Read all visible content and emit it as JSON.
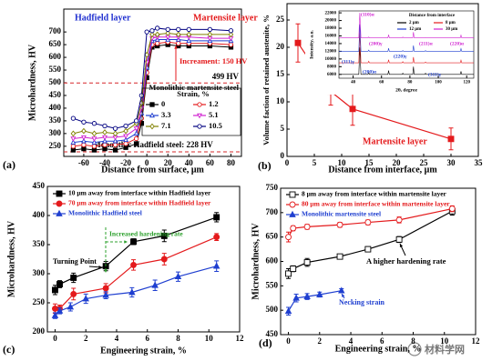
{
  "chart_data": [
    {
      "type": "line",
      "panel": "(a)",
      "xlabel": "Distance from surface, μm",
      "ylabel": "Microhardness, HV",
      "xlim": [
        -79,
        90
      ],
      "ylim": [
        210,
        790
      ],
      "xticks": [
        -60,
        -40,
        -20,
        0,
        20,
        40,
        60,
        80
      ],
      "yticks": [
        250,
        300,
        350,
        400,
        450,
        500,
        550,
        600,
        650,
        700
      ],
      "x": [
        -70,
        -60,
        -50,
        -40,
        -30,
        -20,
        -10,
        -5,
        0,
        5,
        10,
        20,
        30,
        40,
        60,
        80
      ],
      "legend_title": "Strain, %",
      "series": [
        {
          "name": "0",
          "color": "#000000",
          "marker": "square",
          "filled": true,
          "values": [
            235,
            240,
            235,
            240,
            235,
            245,
            260,
            340,
            520,
            640,
            645,
            650,
            645,
            645,
            645,
            640
          ]
        },
        {
          "name": "1.2",
          "color": "#e41a1c",
          "marker": "circle",
          "filled": false,
          "values": [
            250,
            255,
            250,
            255,
            255,
            260,
            280,
            360,
            540,
            650,
            655,
            660,
            655,
            655,
            655,
            650
          ]
        },
        {
          "name": "3.3",
          "color": "#1f3fd0",
          "marker": "triangle",
          "filled": false,
          "values": [
            265,
            270,
            265,
            270,
            270,
            275,
            300,
            380,
            560,
            665,
            670,
            670,
            670,
            665,
            665,
            665
          ]
        },
        {
          "name": "5.1",
          "color": "#d020d0",
          "marker": "tri-down",
          "filled": false,
          "values": [
            280,
            285,
            280,
            285,
            285,
            290,
            320,
            400,
            580,
            675,
            680,
            680,
            680,
            680,
            675,
            675
          ]
        },
        {
          "name": "7.1",
          "color": "#808000",
          "marker": "diamond",
          "filled": false,
          "values": [
            300,
            310,
            300,
            305,
            300,
            310,
            340,
            420,
            610,
            690,
            690,
            695,
            690,
            690,
            690,
            690
          ]
        },
        {
          "name": "10.5",
          "color": "#000080",
          "marker": "circle",
          "filled": false,
          "values": [
            360,
            345,
            340,
            330,
            320,
            330,
            350,
            450,
            700,
            705,
            715,
            710,
            710,
            710,
            710,
            705
          ]
        }
      ],
      "hlines": [
        {
          "value": 499,
          "label": "499 HV",
          "color": "#d62728"
        },
        {
          "value": 228,
          "label": "Monolithic Hadfield steel: 228 HV",
          "color": "#d62728"
        }
      ],
      "annotations": [
        {
          "text": "Hadfield layer",
          "color": "#1f2fd0"
        },
        {
          "text": "Martensite layer",
          "color": "#e41a1c"
        },
        {
          "text": "Increament: 150 HV",
          "color": "#e41a1c"
        },
        {
          "text": "Monolithic martensite steel",
          "color": "#000000"
        }
      ]
    },
    {
      "type": "line",
      "panel": "(b)",
      "xlabel": "Distance from interface, μm",
      "ylabel": "Volume faction of retained austenite, %",
      "xlim": [
        0,
        35
      ],
      "ylim": [
        0,
        28
      ],
      "xticks": [
        0,
        5,
        10,
        15,
        20,
        25,
        30,
        35
      ],
      "yticks": [
        0,
        5,
        10,
        15,
        20,
        25
      ],
      "x": [
        2,
        8,
        12,
        30
      ],
      "values": [
        20.8,
        11.9,
        8.7,
        3.2
      ],
      "errors": [
        3.5,
        2.5,
        3,
        2
      ],
      "color": "#e41a1c",
      "marker": "square",
      "filled": true,
      "annotations": [
        {
          "text": "Martensite layer",
          "color": "#e41a1c"
        }
      ],
      "inset": {
        "type": "line",
        "xlabel": "2θ, degree",
        "ylabel": "Intensity, a.u.",
        "xlim": [
          30,
          125
        ],
        "ylim": [
          5000,
          22500
        ],
        "xticks": [
          40,
          60,
          80,
          100,
          120
        ],
        "yticks": [
          6000,
          8000,
          10000,
          12000,
          14000,
          16000,
          18000,
          20000,
          22000
        ],
        "x": [
          30,
          44,
          44.7,
          45.5,
          50.5,
          51,
          51.5,
          64.5,
          65,
          65.5,
          74.5,
          75,
          75.5,
          82,
          82.5,
          83,
          90.5,
          91,
          91.5,
          115.5,
          116,
          116.5,
          125
        ],
        "legend_title": "Distance from interface",
        "series": [
          {
            "name": "2 μm",
            "color": "#000000",
            "values": [
              6000,
              6000,
              13000,
              6000,
              6000,
              6500,
              6000,
              6000,
              7000,
              6000,
              6000,
              6300,
              6000,
              6000,
              8000,
              6000,
              6000,
              6300,
              6000,
              6000,
              6800,
              6000,
              6000
            ]
          },
          {
            "name": "8 μm",
            "color": "#e41a1c",
            "values": [
              9000,
              9000,
              17000,
              9000,
              9000,
              9400,
              9000,
              9000,
              9800,
              9000,
              9000,
              9300,
              9000,
              9000,
              10500,
              9000,
              9000,
              9200,
              9000,
              9000,
              9700,
              9000,
              9000
            ]
          },
          {
            "name": "12 μm",
            "color": "#1f3fd0",
            "values": [
              12000,
              12000,
              19000,
              12000,
              12000,
              12300,
              12000,
              12000,
              12800,
              12000,
              12000,
              12200,
              12000,
              12000,
              13500,
              12000,
              12000,
              12200,
              12000,
              12000,
              12700,
              12000,
              12000
            ]
          },
          {
            "name": "30 μm",
            "color": "#d020d0",
            "values": [
              15500,
              15500,
              22000,
              15500,
              15500,
              15700,
              15500,
              15500,
              16300,
              15500,
              15500,
              15700,
              15500,
              15500,
              17000,
              15500,
              15500,
              15600,
              15500,
              15500,
              16200,
              15500,
              15500
            ]
          }
        ],
        "annotations": [
          {
            "text": "(110)α",
            "color": "#d020d0"
          },
          {
            "text": "(111)γ",
            "color": "#1f3fd0"
          },
          {
            "text": "(200)γ",
            "color": "#d020d0"
          },
          {
            "text": "(200)α",
            "color": "#1f3fd0"
          },
          {
            "text": "(220)γ",
            "color": "#1f3fd0"
          },
          {
            "text": "(211)α",
            "color": "#d020d0"
          },
          {
            "text": "(311)γ",
            "color": "#1f3fd0"
          },
          {
            "text": "(220)α",
            "color": "#d020d0"
          }
        ]
      }
    },
    {
      "type": "line",
      "panel": "(c)",
      "xlabel": "Engineering strain, %",
      "ylabel": "Microhardness, HV",
      "xlim": [
        -0.5,
        12
      ],
      "ylim": [
        200,
        450
      ],
      "xticks": [
        0,
        2,
        4,
        6,
        8,
        10,
        12
      ],
      "yticks": [
        200,
        250,
        300,
        350,
        400,
        450
      ],
      "series": [
        {
          "name": "10 μm away from interface within Hadfield layer",
          "color": "#000000",
          "marker": "square",
          "filled": true,
          "x": [
            0,
            0.3,
            1.2,
            3.3,
            5.1,
            7.1,
            10.5
          ],
          "values": [
            272,
            282,
            293,
            313,
            355,
            365,
            397
          ],
          "errors": [
            8,
            6,
            8,
            8,
            5,
            10,
            8
          ]
        },
        {
          "name": "70 μm away from interface within Hadfield layer",
          "color": "#e41a1c",
          "marker": "circle",
          "filled": true,
          "x": [
            0,
            0.3,
            1.2,
            3.3,
            5.1,
            7.1,
            10.5
          ],
          "values": [
            240,
            240,
            265,
            275,
            315,
            325,
            363
          ],
          "errors": [
            8,
            6,
            10,
            8,
            9,
            10,
            6
          ]
        },
        {
          "name": "Monolithic Hadfield steel",
          "color": "#1f3fd0",
          "marker": "triangle",
          "filled": true,
          "x": [
            0,
            0.3,
            1,
            2,
            3.3,
            5,
            6.5,
            8,
            10.5
          ],
          "values": [
            228,
            236,
            243,
            257,
            263,
            268,
            280,
            295,
            313
          ],
          "errors": [
            5,
            5,
            7,
            8,
            6,
            8,
            9,
            8,
            9
          ]
        }
      ],
      "annotations": [
        {
          "text": "Increased hardening rate",
          "color": "#2ca02c"
        },
        {
          "text": "Turning Point",
          "color": "#000000"
        }
      ]
    },
    {
      "type": "line",
      "panel": "(d)",
      "xlabel": "Engineering strain, %",
      "ylabel": "Microhardness, HV",
      "xlim": [
        -0.5,
        12
      ],
      "ylim": [
        450,
        750
      ],
      "xticks": [
        0,
        2,
        4,
        6,
        8,
        10,
        12
      ],
      "yticks": [
        450,
        500,
        550,
        600,
        650,
        700,
        750
      ],
      "series": [
        {
          "name": "8 μm away from interface within martensite layer",
          "color": "#000000",
          "marker": "square",
          "filled": false,
          "x": [
            0,
            0.3,
            1.2,
            3.3,
            5.1,
            7.1,
            10.5
          ],
          "values": [
            575,
            585,
            598,
            610,
            625,
            645,
            703
          ],
          "errors": [
            10,
            6,
            8,
            5,
            5,
            6,
            8
          ]
        },
        {
          "name": "80 μm away from interface within martensite layer",
          "color": "#e41a1c",
          "marker": "circle",
          "filled": false,
          "x": [
            0,
            0.3,
            1.2,
            3.3,
            5.1,
            7.1,
            10.5
          ],
          "values": [
            650,
            668,
            671,
            675,
            680,
            685,
            708
          ],
          "errors": [
            10,
            5,
            5,
            5,
            5,
            6,
            6
          ]
        },
        {
          "name": "Monolithic martensite steel",
          "color": "#1f3fd0",
          "marker": "triangle",
          "filled": true,
          "x": [
            0,
            0.5,
            1.2,
            2,
            3.4
          ],
          "values": [
            498,
            525,
            528,
            532,
            540
          ],
          "errors": [
            8,
            8,
            6,
            5,
            4
          ]
        }
      ],
      "annotations": [
        {
          "text": "A higher hardening rate",
          "color": "#000000"
        },
        {
          "text": "Necking strain",
          "color": "#1f3fd0"
        }
      ]
    }
  ],
  "watermark": "材料学网"
}
